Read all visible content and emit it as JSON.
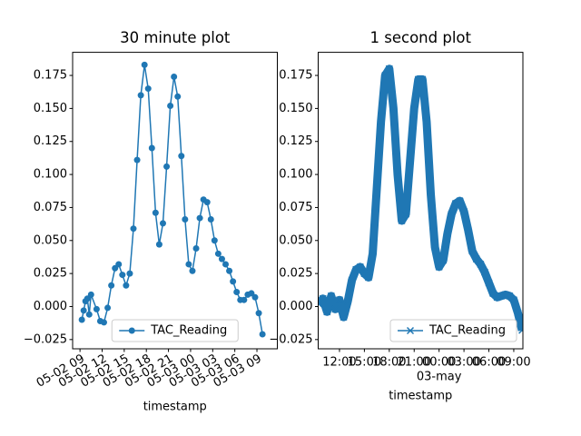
{
  "chart_data": [
    {
      "type": "line",
      "title": "30 minute plot",
      "x_label": "timestamp",
      "x": [
        "05-02 09:15",
        "05-02 09:30",
        "05-02 09:45",
        "05-02 10:00",
        "05-02 10:15",
        "05-02 10:30",
        "05-02 11:15",
        "05-02 11:45",
        "05-02 12:15",
        "05-02 12:45",
        "05-02 13:15",
        "05-02 13:45",
        "05-02 14:15",
        "05-02 14:45",
        "05-02 15:15",
        "05-02 15:45",
        "05-02 16:15",
        "05-02 16:45",
        "05-02 17:15",
        "05-02 17:45",
        "05-02 18:15",
        "05-02 18:45",
        "05-02 19:15",
        "05-02 19:45",
        "05-02 20:15",
        "05-02 20:45",
        "05-02 21:15",
        "05-02 21:45",
        "05-02 22:15",
        "05-02 22:45",
        "05-02 23:15",
        "05-02 23:45",
        "05-03 00:15",
        "05-03 00:45",
        "05-03 01:15",
        "05-03 01:45",
        "05-03 02:15",
        "05-03 02:45",
        "05-03 03:15",
        "05-03 03:45",
        "05-03 04:15",
        "05-03 04:45",
        "05-03 05:15",
        "05-03 05:45",
        "05-03 06:15",
        "05-03 06:45",
        "05-03 07:15",
        "05-03 07:45",
        "05-03 08:15",
        "05-03 08:45",
        "05-03 09:15",
        "05-03 09:45"
      ],
      "series": [
        {
          "name": "TAC_Reading",
          "color": "#1f77b4",
          "marker": "o",
          "values": [
            -0.01,
            -0.003,
            0.004,
            0.006,
            -0.006,
            0.009,
            -0.002,
            -0.011,
            -0.012,
            -0.001,
            0.016,
            0.029,
            0.032,
            0.024,
            0.016,
            0.025,
            0.059,
            0.111,
            0.16,
            0.183,
            0.165,
            0.12,
            0.071,
            0.047,
            0.063,
            0.106,
            0.152,
            0.174,
            0.159,
            0.114,
            0.066,
            0.032,
            0.027,
            0.044,
            0.067,
            0.081,
            0.079,
            0.066,
            0.05,
            0.04,
            0.036,
            0.032,
            0.027,
            0.019,
            0.011,
            0.005,
            0.005,
            0.009,
            0.01,
            0.007,
            -0.005,
            -0.021
          ]
        }
      ],
      "xlim": [
        "05-02 08:00",
        "05-03 11:46"
      ],
      "xticks": [
        {
          "value": "05-02 09:00",
          "label": "05-02 09"
        },
        {
          "value": "05-02 12:00",
          "label": "05-02 12"
        },
        {
          "value": "05-02 15:00",
          "label": "05-02 15"
        },
        {
          "value": "05-02 18:00",
          "label": "05-02 18"
        },
        {
          "value": "05-02 21:00",
          "label": "05-02 21"
        },
        {
          "value": "05-03 00:00",
          "label": "05-03 00"
        },
        {
          "value": "05-03 03:00",
          "label": "05-03 03"
        },
        {
          "value": "05-03 06:00",
          "label": "05-03 06"
        },
        {
          "value": "05-03 09:00",
          "label": "05-03 09"
        }
      ],
      "ylim": [
        -0.032,
        0.1925
      ],
      "yticks": [
        {
          "value": -0.025,
          "label": "−0.025"
        },
        {
          "value": 0,
          "label": "0.000"
        },
        {
          "value": 0.025,
          "label": "0.025"
        },
        {
          "value": 0.05,
          "label": "0.050"
        },
        {
          "value": 0.075,
          "label": "0.075"
        },
        {
          "value": 0.1,
          "label": "0.100"
        },
        {
          "value": 0.125,
          "label": "0.125"
        },
        {
          "value": 0.15,
          "label": "0.150"
        },
        {
          "value": 0.175,
          "label": "0.175"
        }
      ],
      "xtick_rotation": 30,
      "grid": false,
      "legend": "lower center"
    },
    {
      "type": "line",
      "title": "1 second plot",
      "x_label": "timestamp",
      "x": [
        "05-02 09:30",
        "05-02 10:00",
        "05-02 10:30",
        "05-02 11:00",
        "05-02 11:30",
        "05-02 12:00",
        "05-02 12:30",
        "05-02 13:00",
        "05-02 13:30",
        "05-02 14:00",
        "05-02 14:30",
        "05-02 15:00",
        "05-02 15:30",
        "05-02 16:00",
        "05-02 16:30",
        "05-02 17:00",
        "05-02 17:30",
        "05-02 18:00",
        "05-02 18:30",
        "05-02 19:00",
        "05-02 19:30",
        "05-02 20:00",
        "05-02 20:30",
        "05-02 21:00",
        "05-02 21:30",
        "05-02 22:00",
        "05-02 22:30",
        "05-02 23:00",
        "05-02 23:30",
        "05-03 00:00",
        "05-03 00:30",
        "05-03 01:00",
        "05-03 01:30",
        "05-03 02:00",
        "05-03 02:30",
        "05-03 03:00",
        "05-03 03:30",
        "05-03 04:00",
        "05-03 04:30",
        "05-03 05:00",
        "05-03 05:30",
        "05-03 06:00",
        "05-03 06:30",
        "05-03 07:00",
        "05-03 07:30",
        "05-03 08:00",
        "05-03 08:30",
        "05-03 09:00",
        "05-03 09:30",
        "05-03 10:00"
      ],
      "series": [
        {
          "name": "TAC_Reading",
          "color": "#1f77b4",
          "marker": "x",
          "values": [
            0.002,
            0.006,
            -0.004,
            0.008,
            -0.002,
            0.005,
            -0.008,
            0.004,
            0.02,
            0.028,
            0.03,
            0.025,
            0.022,
            0.04,
            0.09,
            0.14,
            0.175,
            0.18,
            0.15,
            0.1,
            0.065,
            0.07,
            0.11,
            0.15,
            0.172,
            0.172,
            0.14,
            0.085,
            0.045,
            0.03,
            0.035,
            0.055,
            0.07,
            0.078,
            0.08,
            0.072,
            0.058,
            0.042,
            0.036,
            0.032,
            0.026,
            0.018,
            0.01,
            0.007,
            0.008,
            0.009,
            0.008,
            0.005,
            -0.005,
            -0.018
          ]
        }
      ],
      "xlim": [
        "05-02 09:26",
        "05-03 10:06"
      ],
      "xticks": [
        {
          "value": "05-02 12:00",
          "label": "12:00"
        },
        {
          "value": "05-02 15:00",
          "label": "15:00"
        },
        {
          "value": "05-02 18:00",
          "label": "18:00"
        },
        {
          "value": "05-02 21:00",
          "label": "21:00"
        },
        {
          "value": "05-03 00:00",
          "label": "00:00",
          "sublabel": "03-may"
        },
        {
          "value": "05-03 03:00",
          "label": "03:00"
        },
        {
          "value": "05-03 06:00",
          "label": "06:00"
        },
        {
          "value": "05-03 09:00",
          "label": "09:00"
        }
      ],
      "ylim": [
        -0.032,
        0.1925
      ],
      "yticks": [
        {
          "value": -0.025,
          "label": "−0.025"
        },
        {
          "value": 0,
          "label": "0.000"
        },
        {
          "value": 0.025,
          "label": "0.025"
        },
        {
          "value": 0.05,
          "label": "0.050"
        },
        {
          "value": 0.075,
          "label": "0.075"
        },
        {
          "value": 0.1,
          "label": "0.100"
        },
        {
          "value": 0.125,
          "label": "0.125"
        },
        {
          "value": 0.15,
          "label": "0.150"
        },
        {
          "value": 0.175,
          "label": "0.175"
        }
      ],
      "xtick_rotation": 0,
      "grid": false,
      "legend": "lower right"
    }
  ]
}
